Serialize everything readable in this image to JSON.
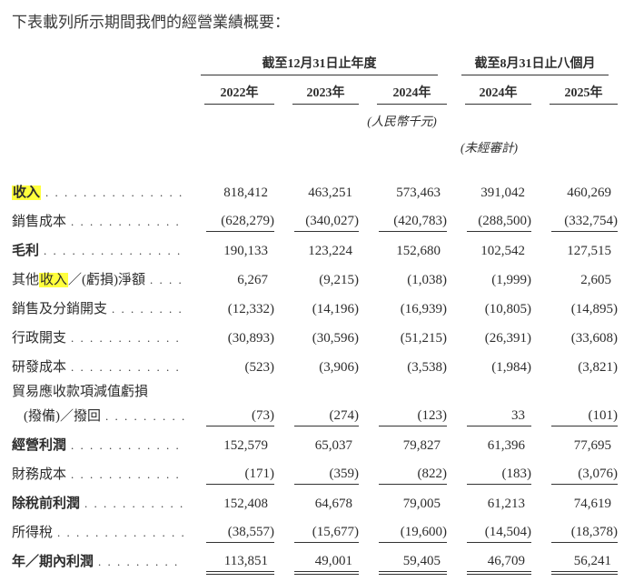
{
  "page": {
    "title": "下表載列所示期間我們的經營業績概要："
  },
  "colors": {
    "highlight_yellow": "#ffff3d",
    "text": "#2d2d2d",
    "rule": "#333333"
  },
  "table": {
    "leader_dots": ". . . . . . . . . . . . . . . . . . . . . . . . . . . . . . . . . . . . . . . .",
    "unit_note": "(人民幣千元)",
    "unaudited_note": "(未經審計)",
    "col_groups": [
      {
        "label": "截至12月31日止年度",
        "span": 3
      },
      {
        "label": "截至8月31日止八個月",
        "span": 2
      }
    ],
    "columns": [
      "2022年",
      "2023年",
      "2024年",
      "2024年",
      "2025年"
    ],
    "rows": [
      {
        "label_parts": [
          {
            "text": "收入",
            "highlight": true
          }
        ],
        "bold": true,
        "values": [
          "818,412",
          "463,251",
          "573,463",
          "391,042",
          "460,269"
        ]
      },
      {
        "label_parts": [
          {
            "text": "銷售成本"
          }
        ],
        "values": [
          "(628,279)",
          "(340,027)",
          "(420,783)",
          "(288,500)",
          "(332,754)"
        ],
        "rule_below": "single"
      },
      {
        "label_parts": [
          {
            "text": "毛利"
          }
        ],
        "bold": true,
        "values": [
          "190,133",
          "123,224",
          "152,680",
          "102,542",
          "127,515"
        ]
      },
      {
        "label_parts": [
          {
            "text": "其他"
          },
          {
            "text": "收入",
            "highlight": true
          },
          {
            "text": "／(虧損)淨額"
          }
        ],
        "values": [
          "6,267",
          "(9,215)",
          "(1,038)",
          "(1,999)",
          "2,605"
        ]
      },
      {
        "label_parts": [
          {
            "text": "銷售及分銷開支"
          }
        ],
        "values": [
          "(12,332)",
          "(14,196)",
          "(16,939)",
          "(10,805)",
          "(14,895)"
        ]
      },
      {
        "label_parts": [
          {
            "text": "行政開支"
          }
        ],
        "values": [
          "(30,893)",
          "(30,596)",
          "(51,215)",
          "(26,391)",
          "(33,608)"
        ]
      },
      {
        "label_parts": [
          {
            "text": "研發成本"
          }
        ],
        "values": [
          "(523)",
          "(3,906)",
          "(3,538)",
          "(1,984)",
          "(3,821)"
        ]
      },
      {
        "label_parts": [
          {
            "text": "貿易應收款項減值虧損"
          }
        ],
        "values": null,
        "compact": true
      },
      {
        "label_parts": [
          {
            "text": "(撥備)／撥回"
          }
        ],
        "indent": true,
        "compact": true,
        "values": [
          "(73)",
          "(274)",
          "(123)",
          "33",
          "(101)"
        ],
        "rule_below": "single"
      },
      {
        "label_parts": [
          {
            "text": "經營利潤"
          }
        ],
        "bold": true,
        "values": [
          "152,579",
          "65,037",
          "79,827",
          "61,396",
          "77,695"
        ]
      },
      {
        "label_parts": [
          {
            "text": "財務成本"
          }
        ],
        "values": [
          "(171)",
          "(359)",
          "(822)",
          "(183)",
          "(3,076)"
        ],
        "rule_below": "single"
      },
      {
        "label_parts": [
          {
            "text": "除稅前利潤"
          }
        ],
        "bold": true,
        "values": [
          "152,408",
          "64,678",
          "79,005",
          "61,213",
          "74,619"
        ]
      },
      {
        "label_parts": [
          {
            "text": "所得稅"
          }
        ],
        "values": [
          "(38,557)",
          "(15,677)",
          "(19,600)",
          "(14,504)",
          "(18,378)"
        ],
        "rule_below": "single"
      },
      {
        "label_parts": [
          {
            "text": "年／期內利潤"
          }
        ],
        "bold": true,
        "values": [
          "113,851",
          "49,001",
          "59,405",
          "46,709",
          "56,241"
        ],
        "rule_below": "double"
      }
    ]
  }
}
